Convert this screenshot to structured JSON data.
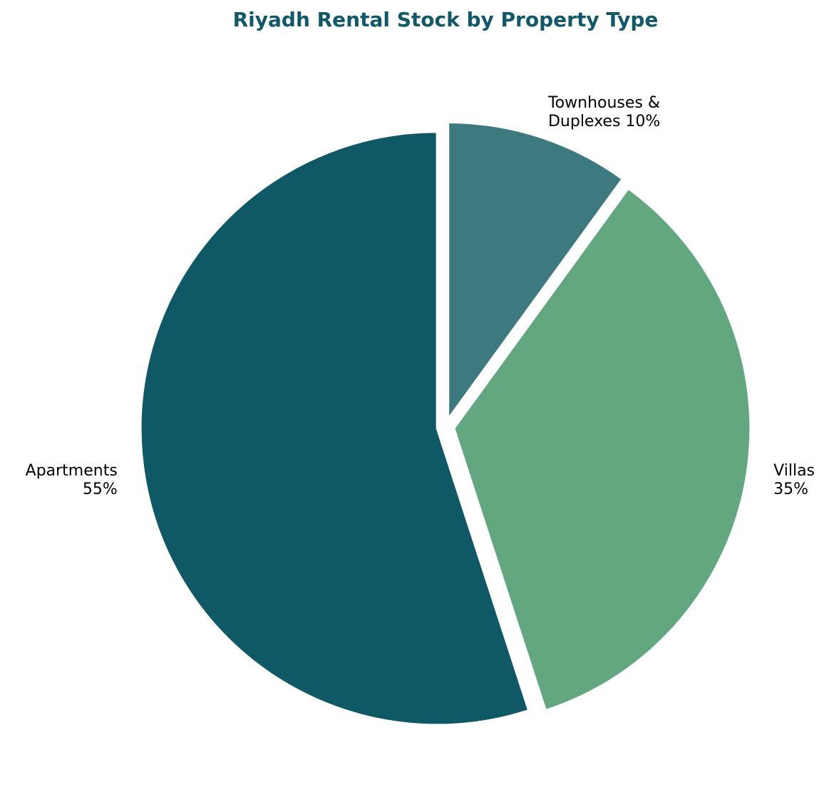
{
  "chart_data": {
    "type": "pie",
    "title": "Riyadh Rental Stock by Property Type",
    "start_angle_deg": 90,
    "direction": "clockwise",
    "exploded": true,
    "slices": [
      {
        "name": "Townhouses & Duplexes",
        "label_lines": [
          "Townhouses &",
          "Duplexes 10%"
        ],
        "value": 10,
        "color": "#3D7A80"
      },
      {
        "name": "Villas",
        "label_lines": [
          "Villas",
          "35%"
        ],
        "value": 35,
        "color": "#62A77F"
      },
      {
        "name": "Apartments",
        "label_lines": [
          "Apartments",
          "55%"
        ],
        "value": 55,
        "color": "#0F5966"
      }
    ]
  }
}
